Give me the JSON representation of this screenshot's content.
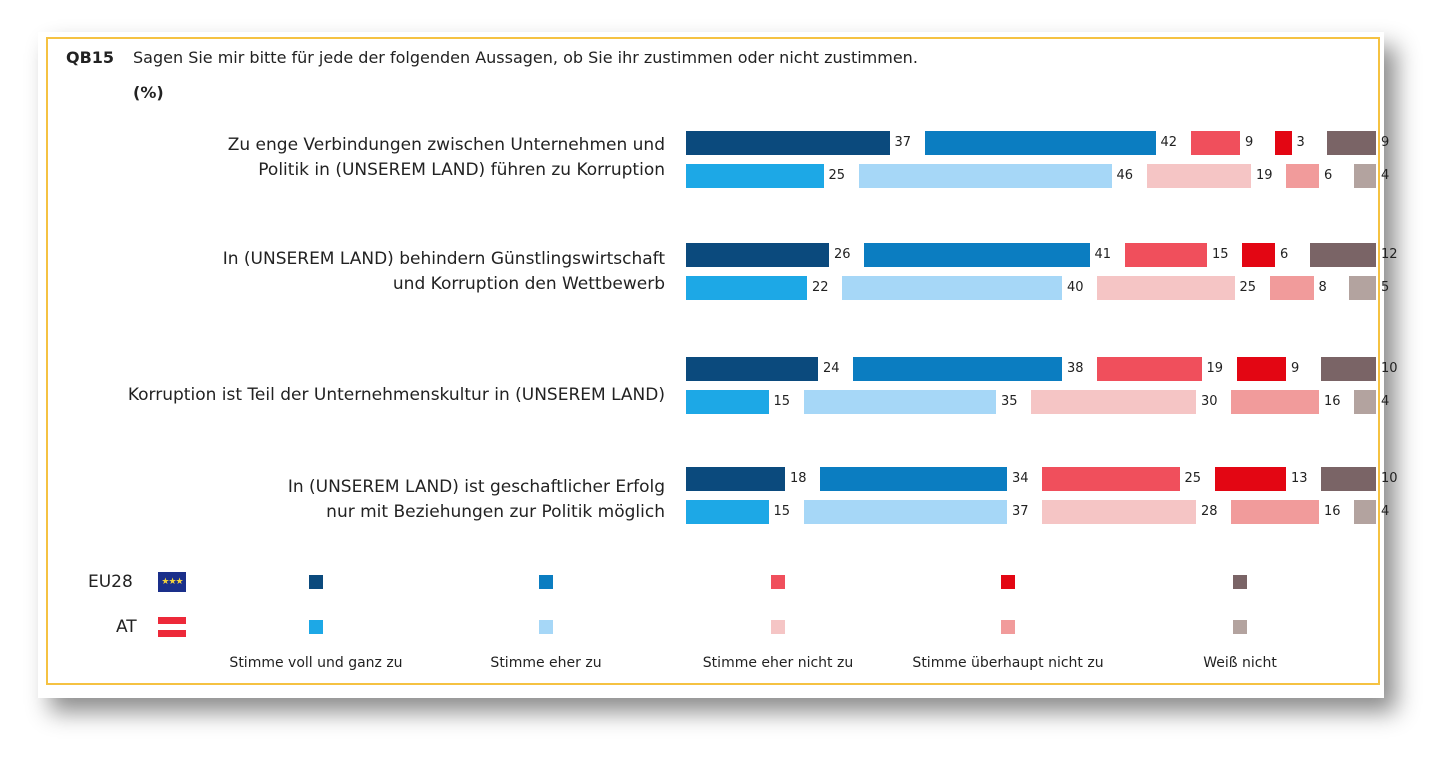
{
  "header": {
    "code": "QB15",
    "question": "Sagen Sie mir bitte für jede der folgenden Aussagen, ob Sie ihr zustimmen oder nicht zustimmen.",
    "unit": "(%)"
  },
  "statements": [
    {
      "lines": [
        "Zu enge Verbindungen zwischen Unternehmen und",
        "Politik in (UNSEREM LAND) führen zu Korruption"
      ]
    },
    {
      "lines": [
        "In (UNSEREM LAND) behindern Günstlingswirtschaft",
        "und Korruption den Wettbewerb"
      ]
    },
    {
      "lines": [
        "Korruption ist Teil der Unternehmenskultur in (UNSEREM LAND)"
      ]
    },
    {
      "lines": [
        "In (UNSEREM LAND) ist geschaftlicher Erfolg",
        "nur mit Beziehungen zur Politik möglich"
      ]
    }
  ],
  "legend": {
    "eu_label": "EU28",
    "at_label": "AT",
    "eu_flag_icon": "eu-flag-icon",
    "at_flag_icon": "austria-flag-icon"
  },
  "chart_data": {
    "type": "bar",
    "orientation": "horizontal",
    "stacked_segments": true,
    "categories": [
      "Zu enge Verbindungen zwischen Unternehmen und Politik in (UNSEREM LAND) führen zu Korruption",
      "In (UNSEREM LAND) behindern Günstlingswirtschaft und Korruption den Wettbewerb",
      "Korruption ist Teil der Unternehmenskultur in (UNSEREM LAND)",
      "In (UNSEREM LAND) ist geschaftlicher Erfolg nur mit Beziehungen zur Politik möglich"
    ],
    "answers": [
      "Stimme voll und ganz zu",
      "Stimme eher zu",
      "Stimme eher nicht zu",
      "Stimme überhaupt nicht zu",
      "Weiß nicht"
    ],
    "series": [
      {
        "name": "EU28",
        "colors": [
          "#0b4a7d",
          "#0b7dc1",
          "#f04f5c",
          "#e30613",
          "#7a6466"
        ],
        "values": [
          [
            37,
            42,
            9,
            3,
            9
          ],
          [
            26,
            41,
            15,
            6,
            12
          ],
          [
            24,
            38,
            19,
            9,
            10
          ],
          [
            18,
            34,
            25,
            13,
            10
          ]
        ]
      },
      {
        "name": "AT",
        "colors": [
          "#1da8e6",
          "#a6d7f7",
          "#f5c5c5",
          "#f19b9b",
          "#b3a39f"
        ],
        "values": [
          [
            25,
            46,
            19,
            6,
            4
          ],
          [
            22,
            40,
            25,
            8,
            5
          ],
          [
            15,
            35,
            30,
            16,
            4
          ],
          [
            15,
            37,
            28,
            16,
            4
          ]
        ]
      }
    ],
    "unit": "%",
    "legend_position": "bottom"
  }
}
